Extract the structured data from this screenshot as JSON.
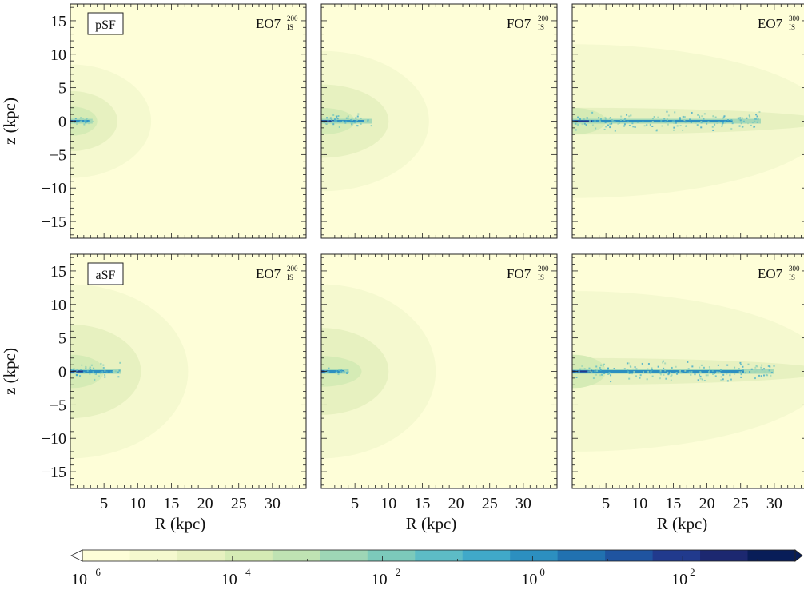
{
  "chart_data": {
    "type": "heatmap",
    "layout": {
      "rows": 2,
      "cols": 3
    },
    "xlabel": "R (kpc)",
    "ylabel": "z (kpc)",
    "xlim": [
      0,
      35
    ],
    "ylim": [
      -17.5,
      17.5
    ],
    "x_ticks": [
      5,
      10,
      15,
      20,
      25,
      30
    ],
    "y_ticks": [
      15,
      10,
      5,
      0,
      -5,
      -10,
      -15
    ],
    "y_tick_labels": [
      "15",
      "10",
      "5",
      "0",
      "−5",
      "−10",
      "−15"
    ],
    "row_labels": [
      "pSF",
      "aSF"
    ],
    "panels": [
      {
        "row": 0,
        "col": 0,
        "label_main": "EO7",
        "label_sup": "200",
        "label_sub": "IS",
        "contours": [
          {
            "level": 1,
            "R": 12,
            "z": 8.5
          },
          {
            "level": 2,
            "R": 7,
            "z": 4.5
          },
          {
            "level": 3,
            "R": 4,
            "z": 2.2
          }
        ],
        "disk": {
          "R": 3.3,
          "scatter": 0.6
        }
      },
      {
        "row": 0,
        "col": 1,
        "label_main": "FO7",
        "label_sup": "200",
        "label_sub": "IS",
        "contours": [
          {
            "level": 1,
            "R": 16,
            "z": 10.5
          },
          {
            "level": 2,
            "R": 10,
            "z": 5.5
          },
          {
            "level": 3,
            "R": 5,
            "z": 2.0
          }
        ],
        "disk": {
          "R": 7.5,
          "scatter": 1.0
        }
      },
      {
        "row": 0,
        "col": 2,
        "label_main": "EO7",
        "label_sup": "300",
        "label_sub": "IS",
        "contours": [
          {
            "level": 1,
            "R": 38,
            "z": 11.5
          },
          {
            "level": 2,
            "R": 38,
            "z": 2.0
          },
          {
            "level": 3,
            "R": 5,
            "z": 2.0
          }
        ],
        "disk": {
          "R": 28,
          "scatter": 1.2
        }
      },
      {
        "row": 1,
        "col": 0,
        "label_main": "EO7",
        "label_sup": "200",
        "label_sub": "IS",
        "contours": [
          {
            "level": 1,
            "R": 17.5,
            "z": 13
          },
          {
            "level": 2,
            "R": 10.5,
            "z": 7
          },
          {
            "level": 3,
            "R": 5,
            "z": 2.5
          }
        ],
        "disk": {
          "R": 7.5,
          "scatter": 1.2
        }
      },
      {
        "row": 1,
        "col": 1,
        "label_main": "FO7",
        "label_sup": "200",
        "label_sub": "IS",
        "contours": [
          {
            "level": 1,
            "R": 17,
            "z": 13
          },
          {
            "level": 2,
            "R": 10,
            "z": 6.5
          },
          {
            "level": 3,
            "R": 6,
            "z": 2.3
          }
        ],
        "disk": {
          "R": 4,
          "scatter": 0.4
        }
      },
      {
        "row": 1,
        "col": 2,
        "label_main": "EO7",
        "label_sup": "300",
        "label_sub": "IS",
        "contours": [
          {
            "level": 1,
            "R": 38,
            "z": 12
          },
          {
            "level": 2,
            "R": 38,
            "z": 2.0
          },
          {
            "level": 3,
            "R": 5,
            "z": 2.5
          }
        ],
        "disk": {
          "R": 30,
          "scatter": 1.3
        }
      }
    ],
    "colorbar": {
      "colors": [
        "#fefed8",
        "#f5f9cf",
        "#e7f1c0",
        "#d5ebb5",
        "#bfe3b3",
        "#9ed6b6",
        "#7ccabb",
        "#5dbcc6",
        "#40a9c9",
        "#2c8fc0",
        "#2171b0",
        "#1f54a0",
        "#213a8d",
        "#1c2870",
        "#081d58"
      ],
      "tick_positions": [
        -6,
        -4,
        -2,
        0,
        2
      ],
      "tick_base": "10",
      "tick_exponents": [
        "−6",
        "−4",
        "−2",
        "0",
        "2"
      ],
      "range": [
        -6,
        3.5
      ]
    }
  }
}
